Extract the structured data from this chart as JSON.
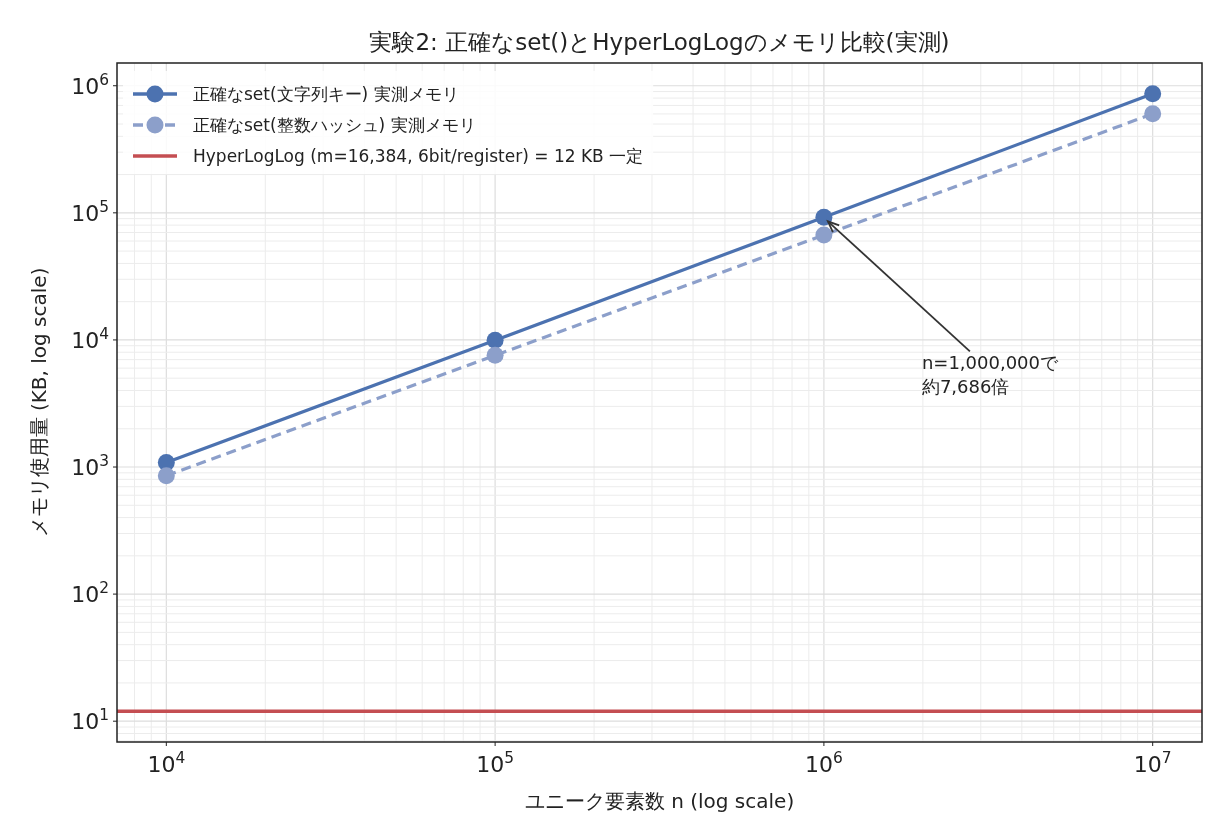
{
  "chart_data": {
    "type": "line",
    "title": "実験2: 正確なset()とHyperLogLogのメモリ比較(実測)",
    "xlabel": "ユニーク要素数 n (log scale)",
    "ylabel": "メモリ使用量 (KB, log scale)",
    "x": [
      10000,
      100000,
      1000000,
      10000000
    ],
    "series": [
      {
        "name": "正確なset(文字列キー) 実測メモリ",
        "color": "#4c72b0",
        "line_style": "solid",
        "values": [
          1084,
          9940,
          92232,
          865000
        ]
      },
      {
        "name": "正確なset(整数ハッシュ) 実測メモリ",
        "color": "#8c9fca",
        "line_style": "dashed",
        "values": [
          855,
          7570,
          66800,
          601000
        ]
      }
    ],
    "ref_lines": [
      {
        "axis": "y",
        "value": 12,
        "label": "HyperLogLog (m=16,384, 6bit/register) = 12 KB 一定",
        "color": "#c44e52"
      }
    ],
    "annotations": [
      {
        "text": "n=1,000,000で約7,686倍",
        "x": 1000000,
        "y": 92232
      }
    ],
    "log": "xy",
    "xlim": [
      7079,
      14125375
    ],
    "ylim": [
      6.86,
      1510000
    ],
    "xticks": [
      {
        "value": 10000,
        "label": "10$^{4}$"
      },
      {
        "value": 100000,
        "label": "10$^{5}$"
      },
      {
        "value": 1000000,
        "label": "10$^{6}$"
      },
      {
        "value": 10000000,
        "label": "10$^{7}$"
      }
    ],
    "yticks": [
      {
        "value": 10,
        "label": "10$^{1}$"
      },
      {
        "value": 100,
        "label": "10$^{2}$"
      },
      {
        "value": 1000,
        "label": "10$^{3}$"
      },
      {
        "value": 10000,
        "label": "10$^{4}$"
      },
      {
        "value": 100000,
        "label": "10$^{5}$"
      },
      {
        "value": 1000000,
        "label": "10$^{6}$"
      }
    ],
    "grid": true,
    "legend": "top left",
    "marker": "circle"
  }
}
